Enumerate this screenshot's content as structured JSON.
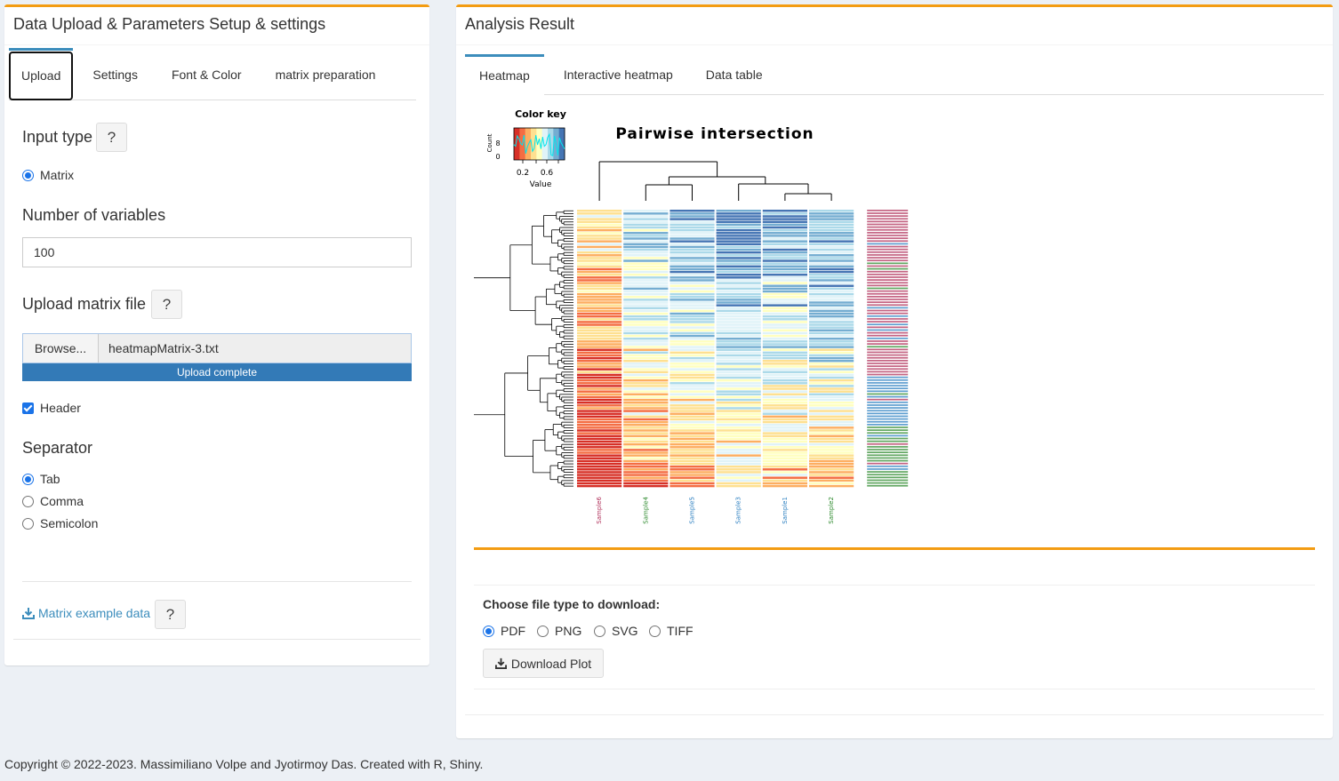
{
  "left_panel": {
    "title": "Data Upload & Parameters Setup & settings",
    "tabs": [
      {
        "label": "Upload",
        "active": true
      },
      {
        "label": "Settings"
      },
      {
        "label": "Font & Color"
      },
      {
        "label": "matrix preparation"
      }
    ],
    "input_type": {
      "label": "Input type",
      "help": "?",
      "options": [
        {
          "label": "Matrix",
          "selected": true
        }
      ]
    },
    "num_vars": {
      "label": "Number of variables",
      "value": "100"
    },
    "upload": {
      "label": "Upload matrix file",
      "help": "?",
      "browse_label": "Browse...",
      "file_name": "heatmapMatrix-3.txt",
      "progress_text": "Upload complete",
      "progress": 1.0
    },
    "header_checkbox": {
      "label": "Header",
      "checked": true
    },
    "separator": {
      "label": "Separator",
      "options": [
        {
          "label": "Tab",
          "selected": true
        },
        {
          "label": "Comma"
        },
        {
          "label": "Semicolon"
        }
      ]
    },
    "example_link": {
      "label": "Matrix example data",
      "help": "?"
    }
  },
  "right_panel": {
    "title": "Analysis Result",
    "tabs": [
      {
        "label": "Heatmap",
        "active": true
      },
      {
        "label": "Interactive heatmap"
      },
      {
        "label": "Data table"
      }
    ],
    "download": {
      "label": "Choose file type to download:",
      "options": [
        {
          "label": "PDF",
          "selected": true
        },
        {
          "label": "PNG"
        },
        {
          "label": "SVG"
        },
        {
          "label": "TIFF"
        }
      ],
      "button_label": "Download Plot"
    }
  },
  "chart_data": {
    "type": "heatmap",
    "title": "Pairwise intersection",
    "color_key": {
      "title": "Color key",
      "xlabel": "Value",
      "ylabel": "Count",
      "ticks": [
        "0.2",
        "0.6"
      ],
      "yticks": [
        "0",
        "8"
      ]
    },
    "columns": [
      "Sample6",
      "Sample4",
      "Sample5",
      "Sample3",
      "Sample1",
      "Sample2"
    ],
    "column_label_colors": [
      "#b0305a",
      "#2d8a2d",
      "#2b7fc0",
      "#2b7fc0",
      "#2b7fc0",
      "#2d8a2d"
    ],
    "row_count": 100,
    "palette": [
      "#d73027",
      "#f46d43",
      "#fdae61",
      "#fee090",
      "#ffffbf",
      "#e0f3f8",
      "#abd9e9",
      "#74add1",
      "#4575b4"
    ],
    "colors": {
      "accent": "#f39c12",
      "primary": "#3c8dbc"
    }
  },
  "footer": "Copyright © 2022-2023. Massimiliano Volpe and Jyotirmoy Das. Created with R, Shiny."
}
